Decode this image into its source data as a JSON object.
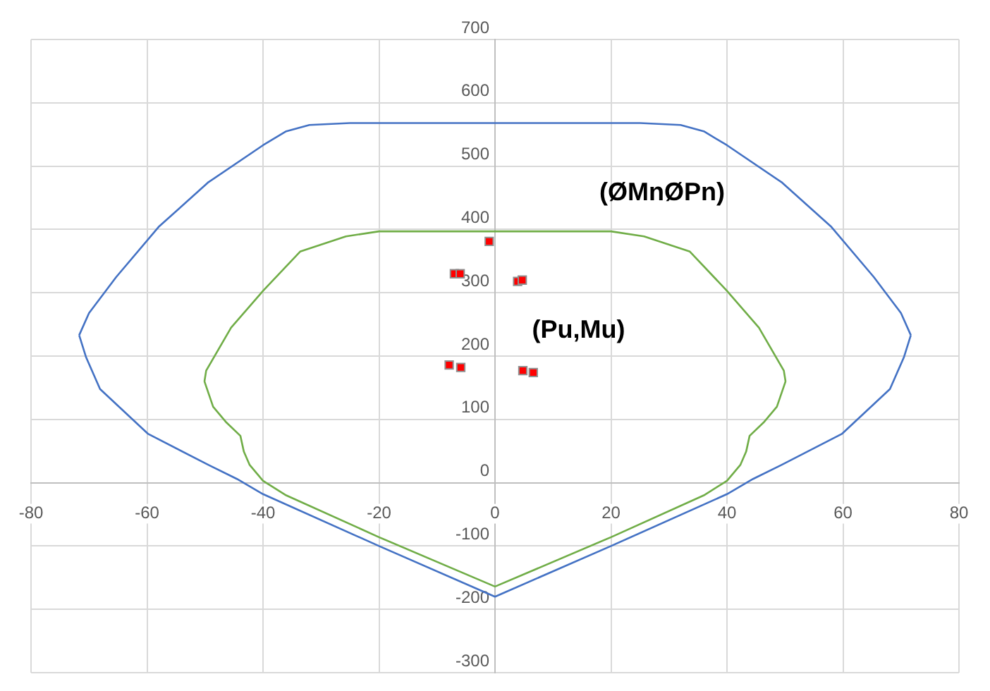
{
  "chart_data": {
    "type": "line",
    "xlim": [
      -80,
      80
    ],
    "ylim": [
      -300,
      700
    ],
    "xticks": [
      -80,
      -60,
      -40,
      -20,
      0,
      20,
      40,
      60,
      80
    ],
    "yticks": [
      -300,
      -200,
      -100,
      0,
      100,
      200,
      300,
      400,
      500,
      600,
      700
    ],
    "grid": true,
    "legend": false,
    "series": [
      {
        "color": "#4472c4",
        "marker": "none",
        "x": [
          -71.7,
          -70,
          -65.3,
          -58,
          -49.5,
          -40,
          -36,
          -32,
          -25,
          25,
          32,
          36,
          40,
          49.5,
          58,
          65.3,
          70,
          71.7
        ],
        "values": [
          233,
          268,
          325,
          404,
          474,
          533,
          555,
          565,
          568,
          568,
          565,
          555,
          533,
          474,
          404,
          325,
          268,
          233
        ]
      },
      {
        "color": "#4472c4",
        "marker": "none",
        "x": [
          -71.7,
          -70.5,
          -68.1,
          -59.8,
          -49.4,
          -44.5,
          -40,
          -20,
          0,
          20,
          40,
          44.5,
          49.4,
          59.8,
          68.1,
          70.5,
          71.7
        ],
        "values": [
          233,
          198,
          148,
          77,
          28,
          6,
          -18,
          -100,
          -180,
          -100,
          -18,
          6,
          28,
          77,
          148,
          198,
          233
        ]
      },
      {
        "color": "#70ad47",
        "marker": "none",
        "x": [
          -50.1,
          -49.8,
          -45.5,
          -39.9,
          -33.6,
          -25.7,
          -20,
          20,
          25.7,
          33.6,
          39.9,
          45.5,
          49.8,
          50.1
        ],
        "values": [
          160,
          177,
          245,
          304,
          365,
          389,
          397,
          397,
          389,
          365,
          304,
          245,
          177,
          160
        ]
      },
      {
        "color": "#70ad47",
        "marker": "none",
        "x": [
          -50.1,
          -48.6,
          -46.3,
          -43.9,
          -43.3,
          -42.3,
          -40,
          -36,
          -20,
          0,
          20,
          36,
          40,
          42.3,
          43.3,
          43.9,
          46.3,
          48.6,
          50.1
        ],
        "values": [
          160,
          120,
          95,
          74,
          49,
          28,
          3,
          -20,
          -86,
          -164,
          -86,
          -20,
          3,
          28,
          49,
          74,
          95,
          120,
          160
        ]
      },
      {
        "type": "scatter",
        "color": "#ff0000",
        "marker": "square",
        "x": [
          -1,
          -7,
          -6,
          3.9,
          4.7,
          -7.9,
          -5.9,
          4.8,
          6.6
        ],
        "values": [
          381,
          330,
          330,
          318,
          320,
          186,
          182,
          177,
          174
        ]
      }
    ],
    "annotations": [
      "(ØMnØPn)",
      "(Pu,Mu)"
    ]
  }
}
